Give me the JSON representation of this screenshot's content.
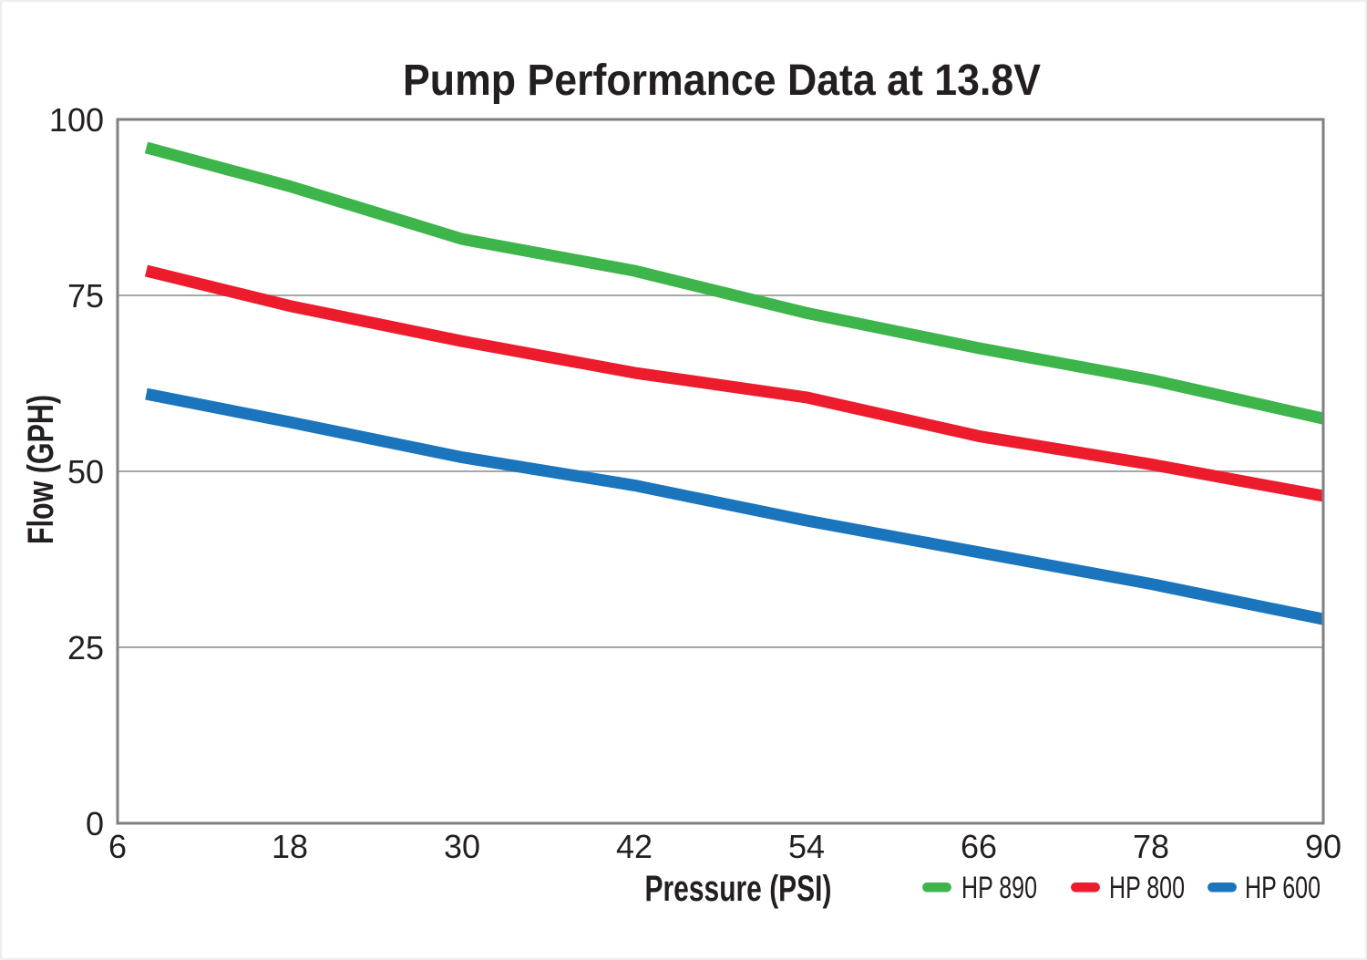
{
  "page": {
    "background": "#ffffff",
    "border_color": "#ededee"
  },
  "chart_data": {
    "type": "line",
    "title": "Pump Performance Data at 13.8V",
    "xlabel": "Pressure (PSI)",
    "ylabel": "Flow (GPH)",
    "xlim": [
      6,
      90
    ],
    "ylim": [
      0,
      100
    ],
    "x_ticks": [
      6,
      18,
      30,
      42,
      54,
      66,
      78,
      90
    ],
    "y_ticks": [
      0,
      25,
      50,
      75,
      100
    ],
    "grid": "horizontal",
    "gridline_values": [
      25,
      50,
      75
    ],
    "legend_position": "bottom-right",
    "x": [
      8,
      18,
      30,
      42,
      54,
      66,
      78,
      90
    ],
    "series": [
      {
        "name": "HP 890",
        "color": "#3db54a",
        "values": [
          96,
          90.5,
          83,
          78.5,
          72.5,
          67.5,
          63,
          57.5
        ]
      },
      {
        "name": "HP 800",
        "color": "#ec1c2d",
        "values": [
          78.5,
          73.5,
          68.5,
          64,
          60.5,
          55,
          51,
          46.5
        ]
      },
      {
        "name": "HP 600",
        "color": "#1b75bc",
        "values": [
          61,
          57,
          52,
          48,
          43,
          38.5,
          34,
          29
        ]
      }
    ],
    "styles": {
      "text_color": "#231f20",
      "gridline_color": "#a6a6a8",
      "frame_color": "#7e8083",
      "line_width": 13
    }
  }
}
